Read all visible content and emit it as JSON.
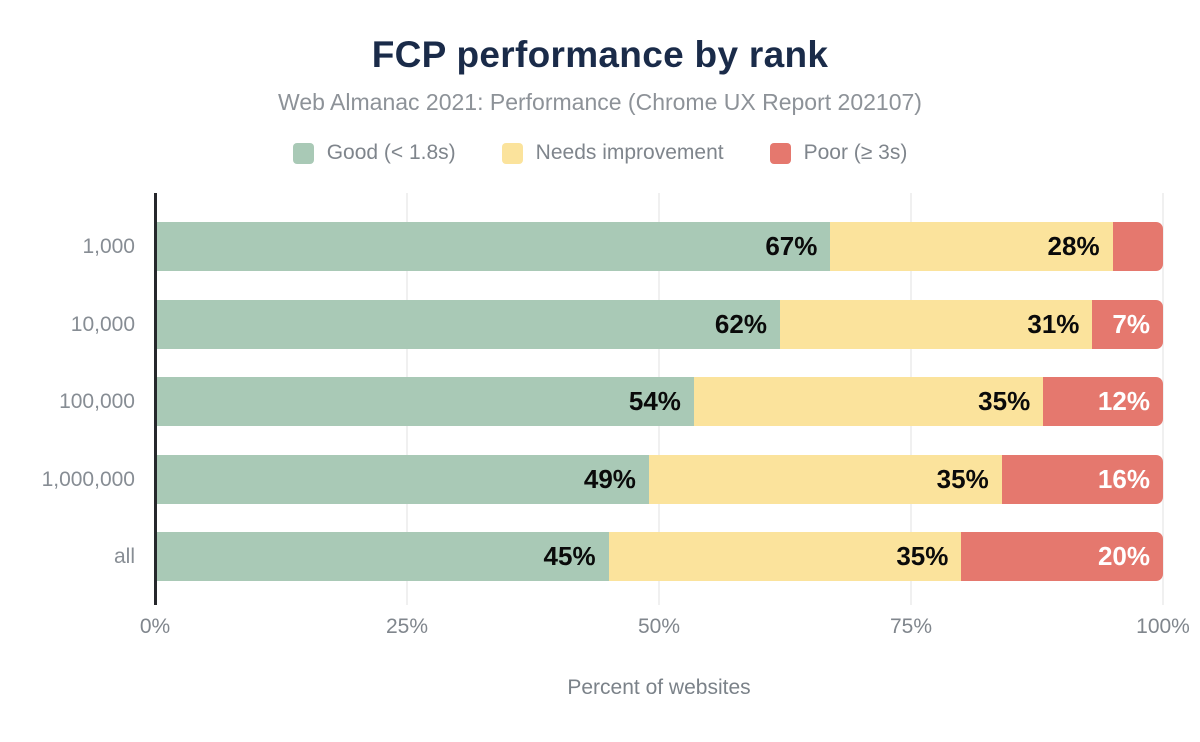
{
  "title": "FCP performance by rank",
  "subtitle": "Web Almanac 2021: Performance (Chrome UX Report 202107)",
  "colors": {
    "title_text": "#1a2b49",
    "muted_text": "#83888f",
    "axis_line": "#26282c",
    "gridline": "#f0f0f0",
    "background": "#ffffff",
    "good": "#a9c9b6",
    "needs_improvement": "#fbe39c",
    "poor": "#e5786e"
  },
  "chart_data": {
    "type": "bar",
    "orientation": "horizontal",
    "stacked": true,
    "title": "FCP performance by rank",
    "subtitle": "Web Almanac 2021: Performance (Chrome UX Report 202107)",
    "xlabel": "Percent of websites",
    "ylabel": "",
    "xlim": [
      0,
      100
    ],
    "grid": "vertical",
    "legend_position": "top",
    "x_ticks": [
      {
        "value": 0,
        "label": "0%"
      },
      {
        "value": 25,
        "label": "25%"
      },
      {
        "value": 50,
        "label": "50%"
      },
      {
        "value": 75,
        "label": "75%"
      },
      {
        "value": 100,
        "label": "100%"
      }
    ],
    "categories": [
      "1,000",
      "10,000",
      "100,000",
      "1,000,000",
      "all"
    ],
    "series": [
      {
        "key": "good",
        "name": "Good (< 1.8s)",
        "color": "#a9c9b6",
        "label_color": "#0a0a0a",
        "values": [
          67,
          62,
          54,
          49,
          45
        ],
        "labels": [
          "67%",
          "62%",
          "54%",
          "49%",
          "45%"
        ]
      },
      {
        "key": "needs-improvement",
        "name": "Needs improvement",
        "color": "#fbe39c",
        "label_color": "#0a0a0a",
        "values": [
          28,
          31,
          35,
          35,
          35
        ],
        "labels": [
          "28%",
          "31%",
          "35%",
          "35%",
          "35%"
        ]
      },
      {
        "key": "poor",
        "name": "Poor (≥ 3s)",
        "color": "#e5786e",
        "label_color": "#ffffff",
        "values": [
          5,
          7,
          12,
          16,
          20
        ],
        "labels": [
          "",
          "7%",
          "12%",
          "16%",
          "20%"
        ]
      }
    ]
  }
}
